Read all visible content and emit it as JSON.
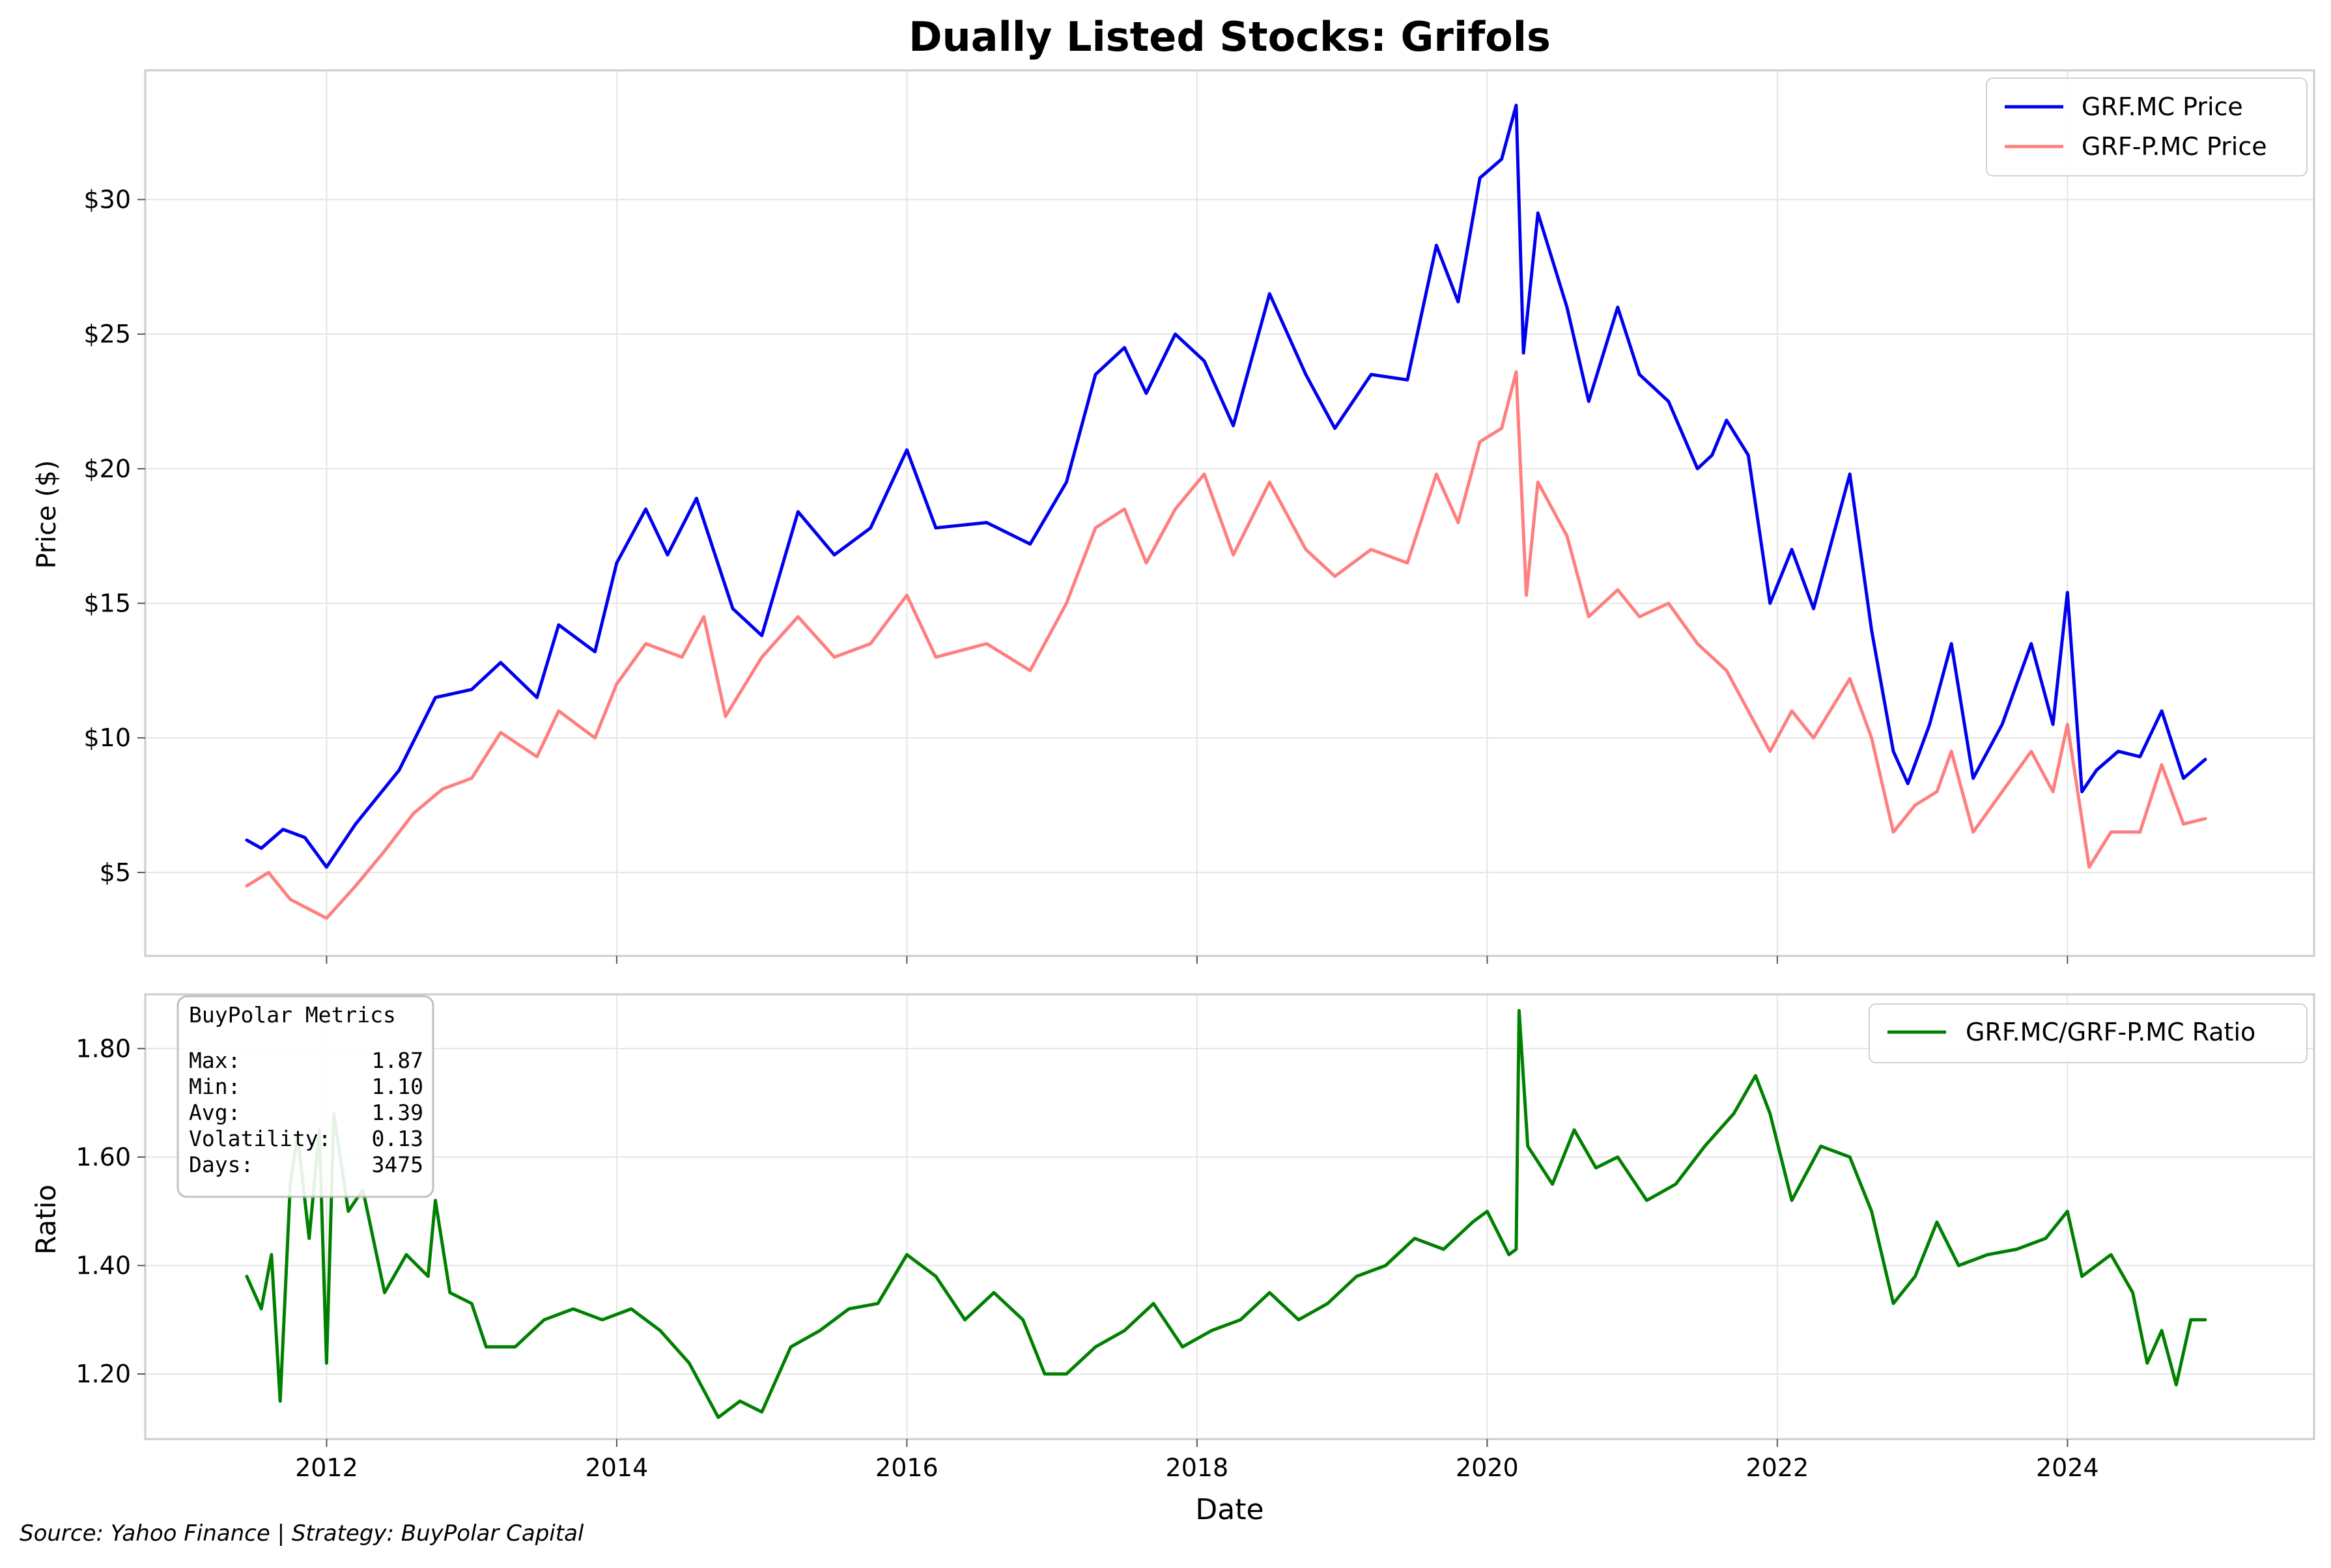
{
  "chart_data": [
    {
      "type": "line",
      "title": "Dually Listed Stocks: Grifols",
      "xlabel": "",
      "ylabel": "Price ($)",
      "xlim": [
        2010.75,
        2025.7
      ],
      "ylim": [
        1.9,
        34.8
      ],
      "yticks": [
        5,
        10,
        15,
        20,
        25,
        30
      ],
      "ytick_labels": [
        "$5",
        "$10",
        "$15",
        "$20",
        "$25",
        "$30"
      ],
      "grid": true,
      "legend_position": "top-right",
      "series": [
        {
          "name": "GRF.MC Price",
          "color": "#0000ee",
          "points": [
            [
              2011.45,
              6.2
            ],
            [
              2011.55,
              5.9
            ],
            [
              2011.7,
              6.6
            ],
            [
              2011.85,
              6.3
            ],
            [
              2012.0,
              5.2
            ],
            [
              2012.2,
              6.8
            ],
            [
              2012.5,
              8.8
            ],
            [
              2012.75,
              11.5
            ],
            [
              2013.0,
              11.8
            ],
            [
              2013.2,
              12.8
            ],
            [
              2013.45,
              11.5
            ],
            [
              2013.6,
              14.2
            ],
            [
              2013.85,
              13.2
            ],
            [
              2014.0,
              16.5
            ],
            [
              2014.2,
              18.5
            ],
            [
              2014.35,
              16.8
            ],
            [
              2014.55,
              18.9
            ],
            [
              2014.8,
              14.8
            ],
            [
              2015.0,
              13.8
            ],
            [
              2015.25,
              18.4
            ],
            [
              2015.5,
              16.8
            ],
            [
              2015.75,
              17.8
            ],
            [
              2016.0,
              20.7
            ],
            [
              2016.2,
              17.8
            ],
            [
              2016.55,
              18.0
            ],
            [
              2016.85,
              17.2
            ],
            [
              2017.1,
              19.5
            ],
            [
              2017.3,
              23.5
            ],
            [
              2017.5,
              24.5
            ],
            [
              2017.65,
              22.8
            ],
            [
              2017.85,
              25.0
            ],
            [
              2018.05,
              24.0
            ],
            [
              2018.25,
              21.6
            ],
            [
              2018.5,
              26.5
            ],
            [
              2018.75,
              23.5
            ],
            [
              2018.95,
              21.5
            ],
            [
              2019.2,
              23.5
            ],
            [
              2019.45,
              23.3
            ],
            [
              2019.65,
              28.3
            ],
            [
              2019.8,
              26.2
            ],
            [
              2019.95,
              30.8
            ],
            [
              2020.1,
              31.5
            ],
            [
              2020.2,
              33.5
            ],
            [
              2020.25,
              24.3
            ],
            [
              2020.35,
              29.5
            ],
            [
              2020.55,
              26.0
            ],
            [
              2020.7,
              22.5
            ],
            [
              2020.9,
              26.0
            ],
            [
              2021.05,
              23.5
            ],
            [
              2021.25,
              22.5
            ],
            [
              2021.45,
              20.0
            ],
            [
              2021.55,
              20.5
            ],
            [
              2021.65,
              21.8
            ],
            [
              2021.8,
              20.5
            ],
            [
              2021.95,
              15.0
            ],
            [
              2022.1,
              17.0
            ],
            [
              2022.25,
              14.8
            ],
            [
              2022.5,
              19.8
            ],
            [
              2022.65,
              14.0
            ],
            [
              2022.8,
              9.5
            ],
            [
              2022.9,
              8.3
            ],
            [
              2023.05,
              10.5
            ],
            [
              2023.2,
              13.5
            ],
            [
              2023.35,
              8.5
            ],
            [
              2023.55,
              10.5
            ],
            [
              2023.75,
              13.5
            ],
            [
              2023.9,
              10.5
            ],
            [
              2024.0,
              15.4
            ],
            [
              2024.1,
              8.0
            ],
            [
              2024.2,
              8.8
            ],
            [
              2024.35,
              9.5
            ],
            [
              2024.5,
              9.3
            ],
            [
              2024.65,
              11.0
            ],
            [
              2024.8,
              8.5
            ],
            [
              2024.95,
              9.2
            ]
          ]
        },
        {
          "name": "GRF-P.MC Price",
          "color": "#ff7f7f",
          "points": [
            [
              2011.45,
              4.5
            ],
            [
              2011.6,
              5.0
            ],
            [
              2011.75,
              4.0
            ],
            [
              2012.0,
              3.3
            ],
            [
              2012.2,
              4.5
            ],
            [
              2012.4,
              5.8
            ],
            [
              2012.6,
              7.2
            ],
            [
              2012.8,
              8.1
            ],
            [
              2013.0,
              8.5
            ],
            [
              2013.2,
              10.2
            ],
            [
              2013.45,
              9.3
            ],
            [
              2013.6,
              11.0
            ],
            [
              2013.85,
              10.0
            ],
            [
              2014.0,
              12.0
            ],
            [
              2014.2,
              13.5
            ],
            [
              2014.45,
              13.0
            ],
            [
              2014.6,
              14.5
            ],
            [
              2014.75,
              10.8
            ],
            [
              2015.0,
              13.0
            ],
            [
              2015.25,
              14.5
            ],
            [
              2015.5,
              13.0
            ],
            [
              2015.75,
              13.5
            ],
            [
              2016.0,
              15.3
            ],
            [
              2016.2,
              13.0
            ],
            [
              2016.55,
              13.5
            ],
            [
              2016.85,
              12.5
            ],
            [
              2017.1,
              15.0
            ],
            [
              2017.3,
              17.8
            ],
            [
              2017.5,
              18.5
            ],
            [
              2017.65,
              16.5
            ],
            [
              2017.85,
              18.5
            ],
            [
              2018.05,
              19.8
            ],
            [
              2018.25,
              16.8
            ],
            [
              2018.5,
              19.5
            ],
            [
              2018.75,
              17.0
            ],
            [
              2018.95,
              16.0
            ],
            [
              2019.2,
              17.0
            ],
            [
              2019.45,
              16.5
            ],
            [
              2019.65,
              19.8
            ],
            [
              2019.8,
              18.0
            ],
            [
              2019.95,
              21.0
            ],
            [
              2020.1,
              21.5
            ],
            [
              2020.2,
              23.6
            ],
            [
              2020.27,
              15.3
            ],
            [
              2020.35,
              19.5
            ],
            [
              2020.55,
              17.5
            ],
            [
              2020.7,
              14.5
            ],
            [
              2020.9,
              15.5
            ],
            [
              2021.05,
              14.5
            ],
            [
              2021.25,
              15.0
            ],
            [
              2021.45,
              13.5
            ],
            [
              2021.65,
              12.5
            ],
            [
              2021.95,
              9.5
            ],
            [
              2022.1,
              11.0
            ],
            [
              2022.25,
              10.0
            ],
            [
              2022.5,
              12.2
            ],
            [
              2022.65,
              10.0
            ],
            [
              2022.8,
              6.5
            ],
            [
              2022.95,
              7.5
            ],
            [
              2023.1,
              8.0
            ],
            [
              2023.2,
              9.5
            ],
            [
              2023.35,
              6.5
            ],
            [
              2023.55,
              8.0
            ],
            [
              2023.75,
              9.5
            ],
            [
              2023.9,
              8.0
            ],
            [
              2024.0,
              10.5
            ],
            [
              2024.15,
              5.2
            ],
            [
              2024.3,
              6.5
            ],
            [
              2024.5,
              6.5
            ],
            [
              2024.65,
              9.0
            ],
            [
              2024.8,
              6.8
            ],
            [
              2024.95,
              7.0
            ]
          ]
        }
      ]
    },
    {
      "type": "line",
      "title": "",
      "xlabel": "Date",
      "ylabel": "Ratio",
      "xlim": [
        2010.75,
        2025.7
      ],
      "ylim": [
        1.08,
        1.9
      ],
      "xticks": [
        2012,
        2014,
        2016,
        2018,
        2020,
        2022,
        2024
      ],
      "xtick_labels": [
        "2012",
        "2014",
        "2016",
        "2018",
        "2020",
        "2022",
        "2024"
      ],
      "yticks": [
        1.2,
        1.4,
        1.6,
        1.8
      ],
      "ytick_labels": [
        "1.20",
        "1.40",
        "1.60",
        "1.80"
      ],
      "grid": true,
      "legend_position": "top-right",
      "series": [
        {
          "name": "GRF.MC/GRF-P.MC Ratio",
          "color": "#008000",
          "points": [
            [
              2011.45,
              1.38
            ],
            [
              2011.55,
              1.32
            ],
            [
              2011.62,
              1.42
            ],
            [
              2011.68,
              1.15
            ],
            [
              2011.75,
              1.55
            ],
            [
              2011.8,
              1.64
            ],
            [
              2011.88,
              1.45
            ],
            [
              2011.95,
              1.65
            ],
            [
              2012.0,
              1.22
            ],
            [
              2012.05,
              1.68
            ],
            [
              2012.15,
              1.5
            ],
            [
              2012.25,
              1.54
            ],
            [
              2012.4,
              1.35
            ],
            [
              2012.55,
              1.42
            ],
            [
              2012.7,
              1.38
            ],
            [
              2012.75,
              1.52
            ],
            [
              2012.85,
              1.35
            ],
            [
              2013.0,
              1.33
            ],
            [
              2013.1,
              1.25
            ],
            [
              2013.3,
              1.25
            ],
            [
              2013.5,
              1.3
            ],
            [
              2013.7,
              1.32
            ],
            [
              2013.9,
              1.3
            ],
            [
              2014.1,
              1.32
            ],
            [
              2014.3,
              1.28
            ],
            [
              2014.5,
              1.22
            ],
            [
              2014.7,
              1.12
            ],
            [
              2014.85,
              1.15
            ],
            [
              2015.0,
              1.13
            ],
            [
              2015.2,
              1.25
            ],
            [
              2015.4,
              1.28
            ],
            [
              2015.6,
              1.32
            ],
            [
              2015.8,
              1.33
            ],
            [
              2016.0,
              1.42
            ],
            [
              2016.2,
              1.38
            ],
            [
              2016.4,
              1.3
            ],
            [
              2016.6,
              1.35
            ],
            [
              2016.8,
              1.3
            ],
            [
              2016.95,
              1.2
            ],
            [
              2017.1,
              1.2
            ],
            [
              2017.3,
              1.25
            ],
            [
              2017.5,
              1.28
            ],
            [
              2017.7,
              1.33
            ],
            [
              2017.9,
              1.25
            ],
            [
              2018.1,
              1.28
            ],
            [
              2018.3,
              1.3
            ],
            [
              2018.5,
              1.35
            ],
            [
              2018.7,
              1.3
            ],
            [
              2018.9,
              1.33
            ],
            [
              2019.1,
              1.38
            ],
            [
              2019.3,
              1.4
            ],
            [
              2019.5,
              1.45
            ],
            [
              2019.7,
              1.43
            ],
            [
              2019.9,
              1.48
            ],
            [
              2020.0,
              1.5
            ],
            [
              2020.15,
              1.42
            ],
            [
              2020.2,
              1.43
            ],
            [
              2020.22,
              1.87
            ],
            [
              2020.28,
              1.62
            ],
            [
              2020.45,
              1.55
            ],
            [
              2020.6,
              1.65
            ],
            [
              2020.75,
              1.58
            ],
            [
              2020.9,
              1.6
            ],
            [
              2021.1,
              1.52
            ],
            [
              2021.3,
              1.55
            ],
            [
              2021.5,
              1.62
            ],
            [
              2021.7,
              1.68
            ],
            [
              2021.85,
              1.75
            ],
            [
              2021.95,
              1.68
            ],
            [
              2022.1,
              1.52
            ],
            [
              2022.3,
              1.62
            ],
            [
              2022.5,
              1.6
            ],
            [
              2022.65,
              1.5
            ],
            [
              2022.8,
              1.33
            ],
            [
              2022.95,
              1.38
            ],
            [
              2023.1,
              1.48
            ],
            [
              2023.25,
              1.4
            ],
            [
              2023.45,
              1.42
            ],
            [
              2023.65,
              1.43
            ],
            [
              2023.85,
              1.45
            ],
            [
              2024.0,
              1.5
            ],
            [
              2024.1,
              1.38
            ],
            [
              2024.3,
              1.42
            ],
            [
              2024.45,
              1.35
            ],
            [
              2024.55,
              1.22
            ],
            [
              2024.65,
              1.28
            ],
            [
              2024.75,
              1.18
            ],
            [
              2024.85,
              1.3
            ],
            [
              2024.95,
              1.3
            ]
          ]
        }
      ]
    }
  ],
  "metrics_box": {
    "title": "BuyPolar Metrics",
    "rows": [
      {
        "label": "Max:",
        "value": "1.87"
      },
      {
        "label": "Min:",
        "value": "1.10"
      },
      {
        "label": "Avg:",
        "value": "1.39"
      },
      {
        "label": "Volatility:",
        "value": "0.13"
      },
      {
        "label": "Days:",
        "value": "3475"
      }
    ]
  },
  "footer": {
    "source_text": "Source: Yahoo Finance | Strategy: BuyPolar Capital"
  },
  "colors": {
    "axis": "#cccccc",
    "grid": "#e5e5e5",
    "legend_border": "#cccccc",
    "metrics_bg": "#ffffff"
  }
}
